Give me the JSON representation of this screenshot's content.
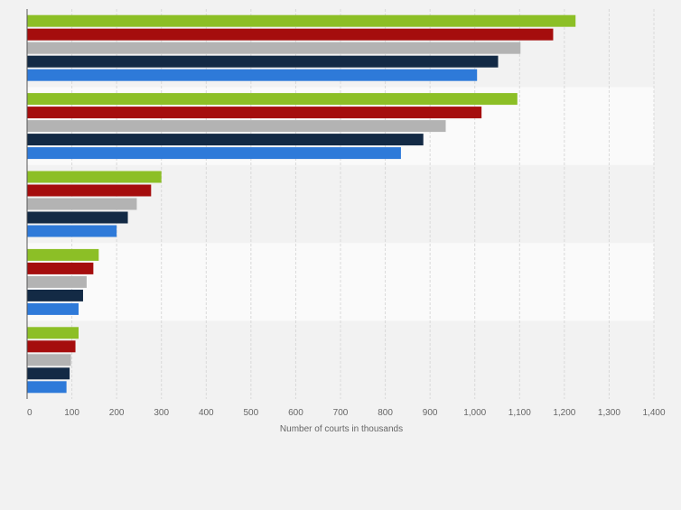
{
  "chart_data": {
    "type": "bar",
    "orientation": "horizontal",
    "xlabel": "Number of courts in thousands",
    "ylabel": "",
    "xlim": [
      0,
      1400
    ],
    "x_ticks": [
      "0",
      "100",
      "200",
      "300",
      "400",
      "500",
      "600",
      "700",
      "800",
      "900",
      "1,000",
      "1,100",
      "1,200",
      "1,300",
      "1,400"
    ],
    "x_tick_values": [
      0,
      100,
      200,
      300,
      400,
      500,
      600,
      700,
      800,
      900,
      1000,
      1100,
      1200,
      1300,
      1400
    ],
    "grid": "vertical",
    "legend": "none",
    "category_labels_visible": false,
    "category_count": 5,
    "series": [
      {
        "color": "#8cbf26",
        "values": [
          1225,
          1095,
          300,
          160,
          115
        ]
      },
      {
        "color": "#a50d0d",
        "values": [
          1175,
          1015,
          277,
          148,
          108
        ]
      },
      {
        "color": "#b3b3b3",
        "values": [
          1102,
          935,
          245,
          133,
          98
        ]
      },
      {
        "color": "#132a45",
        "values": [
          1052,
          885,
          225,
          125,
          95
        ]
      },
      {
        "color": "#2e7ad9",
        "values": [
          1005,
          835,
          200,
          115,
          88
        ]
      }
    ]
  },
  "colors": {
    "page_background": "#f2f2f2",
    "plot_band_dark": "#f2f2f2",
    "plot_band_light": "#fafafa",
    "grid_line": "#d9d9d9",
    "axis_line": "#555555",
    "tick_text": "#666666"
  }
}
